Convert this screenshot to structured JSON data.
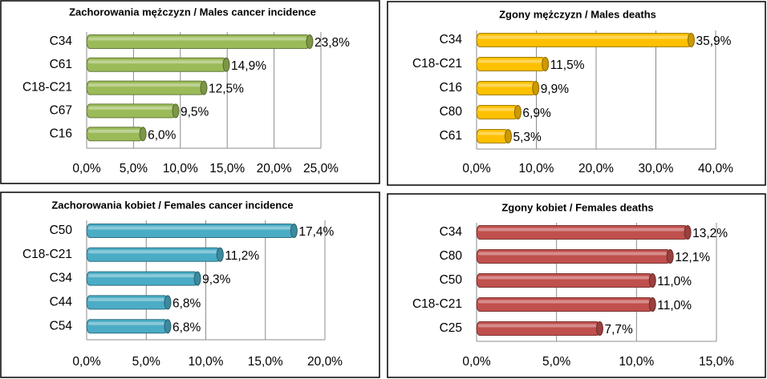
{
  "chart_data": [
    {
      "type": "bar",
      "title": "Zachorowania mężczyzn / Males cancer incidence",
      "categories": [
        "C34",
        "C61",
        "C18-C21",
        "C67",
        "C16"
      ],
      "values": [
        23.8,
        14.9,
        12.5,
        9.5,
        6.0
      ],
      "value_labels": [
        "23,8%",
        "14,9%",
        "12,5%",
        "9,5%",
        "6,0%"
      ],
      "color": "#9bbb59",
      "xlim": [
        0,
        25
      ],
      "xticks": [
        {
          "value": 0,
          "label": "0,0%"
        },
        {
          "value": 5,
          "label": "5,0%"
        },
        {
          "value": 10,
          "label": "10,0%"
        },
        {
          "value": 15,
          "label": "15,0%"
        },
        {
          "value": 20,
          "label": "20,0%"
        },
        {
          "value": 25,
          "label": "25,0%"
        }
      ],
      "grid": true
    },
    {
      "type": "bar",
      "title": "Zgony mężczyzn / Males deaths",
      "categories": [
        "C34",
        "C18-C21",
        "C16",
        "C80",
        "C61"
      ],
      "values": [
        35.9,
        11.5,
        9.9,
        6.9,
        5.3
      ],
      "value_labels": [
        "35,9%",
        "11,5%",
        "9,9%",
        "6,9%",
        "5,3%"
      ],
      "color": "#ffc000",
      "xlim": [
        0,
        40
      ],
      "xticks": [
        {
          "value": 0,
          "label": "0,0%"
        },
        {
          "value": 10,
          "label": "10,0%"
        },
        {
          "value": 20,
          "label": "20,0%"
        },
        {
          "value": 30,
          "label": "30,0%"
        },
        {
          "value": 40,
          "label": "40,0%"
        }
      ],
      "grid": true
    },
    {
      "type": "bar",
      "title": "Zachorowania kobiet / Females cancer incidence",
      "categories": [
        "C50",
        "C18-C21",
        "C34",
        "C44",
        "C54"
      ],
      "values": [
        17.4,
        11.2,
        9.3,
        6.8,
        6.8
      ],
      "value_labels": [
        "17,4%",
        "11,2%",
        "9,3%",
        "6,8%",
        "6,8%"
      ],
      "color": "#4bacc6",
      "xlim": [
        0,
        20
      ],
      "xticks": [
        {
          "value": 0,
          "label": "0,0%"
        },
        {
          "value": 5,
          "label": "5,0%"
        },
        {
          "value": 10,
          "label": "10,0%"
        },
        {
          "value": 15,
          "label": "15,0%"
        },
        {
          "value": 20,
          "label": "20,0%"
        }
      ],
      "grid": true
    },
    {
      "type": "bar",
      "title": "Zgony kobiet / Females deaths",
      "categories": [
        "C34",
        "C80",
        "C50",
        "C18-C21",
        "C25"
      ],
      "values": [
        13.2,
        12.1,
        11.0,
        11.0,
        7.7
      ],
      "value_labels": [
        "13,2%",
        "12,1%",
        "11,0%",
        "11,0%",
        "7,7%"
      ],
      "color": "#c0504d",
      "xlim": [
        0,
        15
      ],
      "xticks": [
        {
          "value": 0,
          "label": "0,0%"
        },
        {
          "value": 5,
          "label": "5,0%"
        },
        {
          "value": 10,
          "label": "10,0%"
        },
        {
          "value": 15,
          "label": "15,0%"
        }
      ],
      "grid": true
    }
  ]
}
